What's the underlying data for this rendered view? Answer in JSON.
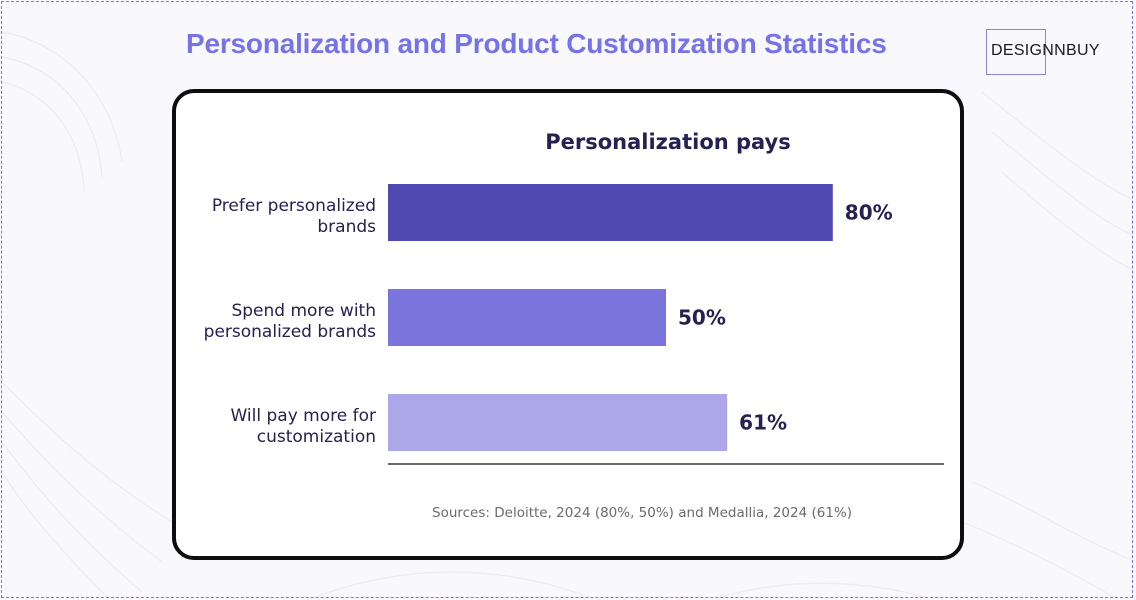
{
  "page": {
    "headline": "Personalization and Product Customization Statistics",
    "logo_text": "DESIGNNBUY"
  },
  "chart_data": {
    "type": "bar",
    "orientation": "horizontal",
    "title": "Personalization pays",
    "categories": [
      [
        "Prefer personalized",
        "brands"
      ],
      [
        "Spend more with",
        "personalized brands"
      ],
      [
        "Will pay more for",
        "customization"
      ]
    ],
    "values": [
      80,
      50,
      61
    ],
    "value_labels": [
      "80%",
      "50%",
      "61%"
    ],
    "bar_colors": [
      "#5049b1",
      "#7975dc",
      "#aca7e8"
    ],
    "xlim": [
      0,
      100
    ],
    "grid": false,
    "source": "Sources: Deloitte, 2024 (80%, 50%) and Medallia, 2024 (61%)"
  },
  "colors": {
    "headline": "#7573e6",
    "text_dark": "#252152",
    "frame_dashed": "#7b78e0"
  }
}
